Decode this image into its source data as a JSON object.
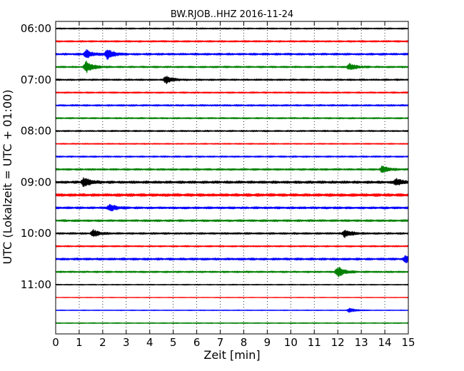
{
  "chart_data": {
    "type": "line",
    "title": "BW.RJOB..HHZ 2016-11-24",
    "xlabel": "Zeit  [min]",
    "ylabel": "UTC (Lokalzeit = UTC + 01:00)",
    "xlim": [
      0,
      15
    ],
    "x_ticks": [
      "0",
      "1",
      "2",
      "3",
      "4",
      "5",
      "6",
      "7",
      "8",
      "9",
      "10",
      "11",
      "12",
      "13",
      "14",
      "15"
    ],
    "y_ticks": [
      "06:00",
      "07:00",
      "08:00",
      "09:00",
      "10:00",
      "11:00"
    ],
    "grid": "vertical dotted",
    "colors": [
      "#000000",
      "#ff0000",
      "#0000ff",
      "#008000"
    ],
    "series": [
      {
        "start": "06:00",
        "color": "#000000",
        "level": 0.35,
        "events": []
      },
      {
        "start": "06:15",
        "color": "#ff0000",
        "level": 0.45,
        "events": []
      },
      {
        "start": "06:30",
        "color": "#0000ff",
        "level": 0.55,
        "events": [
          {
            "x": 1.3,
            "amp": 1.1
          },
          {
            "x": 2.2,
            "amp": 1.4
          }
        ]
      },
      {
        "start": "06:45",
        "color": "#008000",
        "level": 0.45,
        "events": [
          {
            "x": 1.3,
            "amp": 1.6
          },
          {
            "x": 12.5,
            "amp": 0.9
          }
        ]
      },
      {
        "start": "07:00",
        "color": "#000000",
        "level": 0.45,
        "events": [
          {
            "x": 4.7,
            "amp": 1.0
          }
        ]
      },
      {
        "start": "07:15",
        "color": "#ff0000",
        "level": 0.4,
        "events": []
      },
      {
        "start": "07:30",
        "color": "#0000ff",
        "level": 0.45,
        "events": []
      },
      {
        "start": "07:45",
        "color": "#008000",
        "level": 0.4,
        "events": []
      },
      {
        "start": "08:00",
        "color": "#000000",
        "level": 0.4,
        "events": []
      },
      {
        "start": "08:15",
        "color": "#ff0000",
        "level": 0.3,
        "events": []
      },
      {
        "start": "08:30",
        "color": "#0000ff",
        "level": 0.4,
        "events": []
      },
      {
        "start": "08:45",
        "color": "#008000",
        "level": 0.5,
        "events": [
          {
            "x": 13.9,
            "amp": 0.9
          }
        ]
      },
      {
        "start": "09:00",
        "color": "#000000",
        "level": 0.7,
        "events": [
          {
            "x": 1.2,
            "amp": 1.3
          },
          {
            "x": 14.5,
            "amp": 0.9
          }
        ]
      },
      {
        "start": "09:15",
        "color": "#ff0000",
        "level": 0.8,
        "events": []
      },
      {
        "start": "09:30",
        "color": "#0000ff",
        "level": 0.6,
        "events": [
          {
            "x": 2.3,
            "amp": 0.9
          }
        ]
      },
      {
        "start": "09:45",
        "color": "#008000",
        "level": 0.55,
        "events": []
      },
      {
        "start": "10:00",
        "color": "#000000",
        "level": 0.5,
        "events": [
          {
            "x": 1.6,
            "amp": 0.9
          },
          {
            "x": 12.3,
            "amp": 1.0
          }
        ]
      },
      {
        "start": "10:15",
        "color": "#ff0000",
        "level": 0.4,
        "events": []
      },
      {
        "start": "10:30",
        "color": "#0000ff",
        "level": 0.6,
        "events": [
          {
            "x": 14.9,
            "amp": 0.9
          }
        ]
      },
      {
        "start": "10:45",
        "color": "#008000",
        "level": 0.45,
        "events": [
          {
            "x": 12.0,
            "amp": 1.5
          }
        ]
      },
      {
        "start": "11:00",
        "color": "#000000",
        "level": 0.25,
        "events": []
      },
      {
        "start": "11:15",
        "color": "#ff0000",
        "level": 0.15,
        "events": []
      },
      {
        "start": "11:30",
        "color": "#0000ff",
        "level": 0.2,
        "events": [
          {
            "x": 12.5,
            "amp": 0.6
          }
        ]
      },
      {
        "start": "11:45",
        "color": "#008000",
        "level": 0.25,
        "events": []
      }
    ]
  }
}
